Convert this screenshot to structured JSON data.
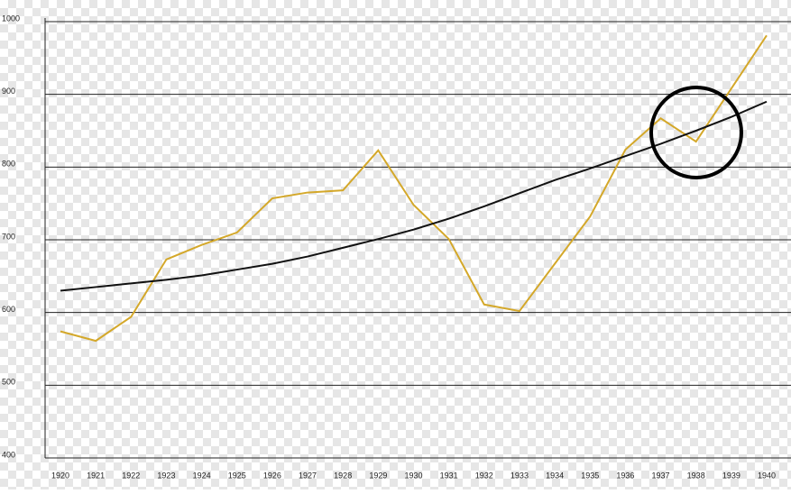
{
  "chart_data": {
    "type": "line",
    "categories": [
      "1920",
      "1921",
      "1922",
      "1923",
      "1924",
      "1925",
      "1926",
      "1927",
      "1928",
      "1929",
      "1930",
      "1931",
      "1932",
      "1933",
      "1934",
      "1935",
      "1936",
      "1937",
      "1938",
      "1939",
      "1940"
    ],
    "series": [
      {
        "color": "#d4a82a",
        "values": [
          574,
          561,
          594,
          673,
          693,
          710,
          757,
          765,
          768,
          823,
          748,
          701,
          611,
          602,
          667,
          732,
          824,
          867,
          835,
          908,
          981
        ]
      },
      {
        "color": "#111111",
        "values": [
          630,
          635,
          640,
          645,
          651,
          659,
          667,
          677,
          689,
          701,
          714,
          729,
          746,
          764,
          782,
          798,
          815,
          832,
          850,
          869,
          890
        ]
      }
    ],
    "ylim": [
      400,
      1000
    ],
    "yticks": [
      400,
      500,
      600,
      700,
      800,
      900,
      1000
    ],
    "grid": true
  }
}
